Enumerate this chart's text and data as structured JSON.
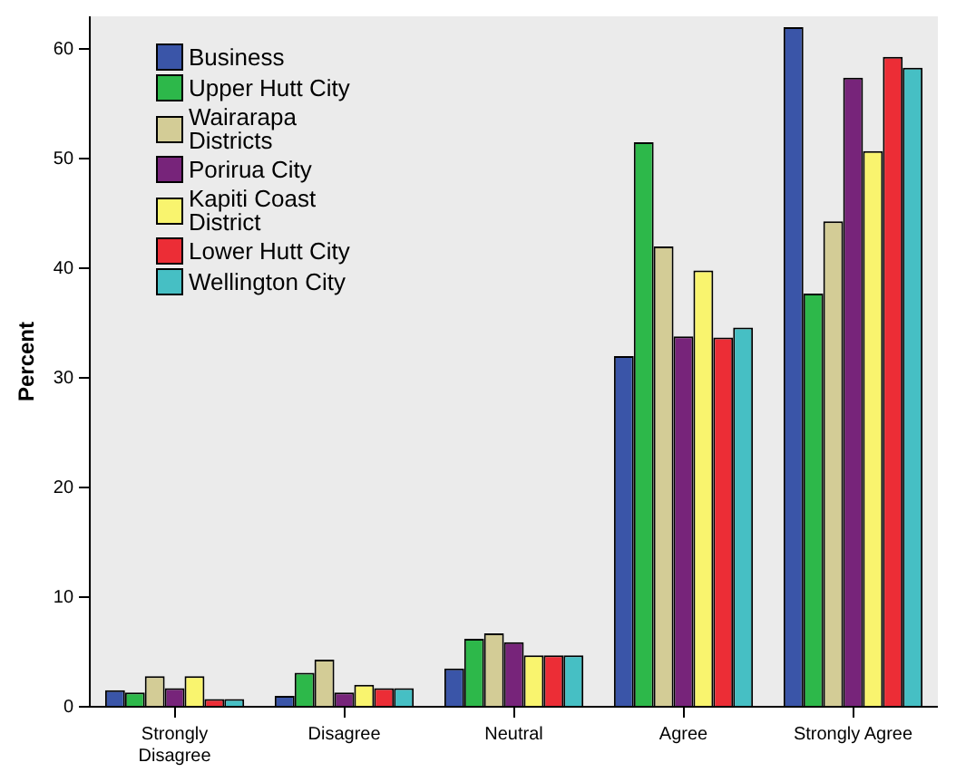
{
  "chart_data": {
    "type": "bar",
    "ylabel": "Percent",
    "categories": [
      "Strongly Disagree",
      "Disagree",
      "Neutral",
      "Agree",
      "Strongly Agree"
    ],
    "series": [
      {
        "name": "Business",
        "color": "#3a55a8",
        "values": [
          1.5,
          1.0,
          3.5,
          32.0,
          62.0
        ]
      },
      {
        "name": "Upper Hutt City",
        "color": "#2db84a",
        "values": [
          1.3,
          3.1,
          6.2,
          51.5,
          37.7
        ]
      },
      {
        "name": "Wairarapa Districts",
        "color": "#d3cc96",
        "values": [
          2.8,
          4.3,
          6.7,
          42.0,
          44.3
        ]
      },
      {
        "name": "Porirua City",
        "color": "#77247a",
        "values": [
          1.7,
          1.3,
          5.9,
          33.8,
          57.4
        ]
      },
      {
        "name": "Kapiti Coast District",
        "color": "#f9f46e",
        "values": [
          2.8,
          2.0,
          4.7,
          39.8,
          50.7
        ]
      },
      {
        "name": "Lower Hutt City",
        "color": "#ec2d36",
        "values": [
          0.7,
          1.7,
          4.7,
          33.7,
          59.3
        ]
      },
      {
        "name": "Wellington City",
        "color": "#46bfc4",
        "values": [
          0.7,
          1.7,
          4.7,
          34.6,
          58.3
        ]
      }
    ],
    "ylim": [
      0,
      63
    ],
    "yticks": [
      0,
      10,
      20,
      30,
      40,
      50,
      60
    ],
    "grid": false,
    "legend": "top left"
  }
}
